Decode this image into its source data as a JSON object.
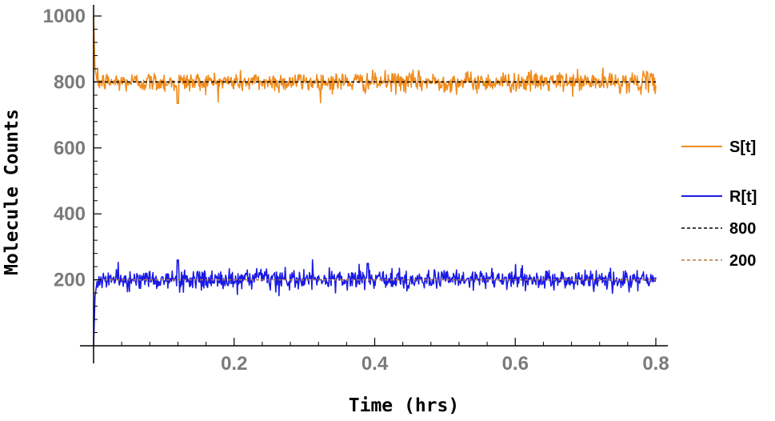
{
  "chart_data": {
    "type": "line",
    "title": "",
    "xlabel": "Time (hrs)",
    "ylabel": "Molecule Counts",
    "xlim": [
      0,
      0.81
    ],
    "ylim": [
      0,
      1050
    ],
    "x_ticks": [
      0.2,
      0.4,
      0.6,
      0.8
    ],
    "x_tick_labels": [
      "0.2",
      "0.4",
      "0.6",
      "0.8"
    ],
    "y_ticks": [
      200,
      400,
      600,
      800,
      1000
    ],
    "y_tick_labels": [
      "200",
      "400",
      "600",
      "800",
      "1000"
    ],
    "grid": false,
    "legend_position": "right",
    "series": [
      {
        "name": "S[t]",
        "color": "#f08c1e",
        "style": "solid",
        "points": [
          [
            0,
            1000
          ],
          [
            0.002,
            840
          ],
          [
            0.005,
            805
          ],
          [
            0.02,
            800
          ],
          [
            0.05,
            810
          ],
          [
            0.1,
            800
          ],
          [
            0.12,
            735
          ],
          [
            0.2,
            800
          ],
          [
            0.3,
            805
          ],
          [
            0.39,
            790
          ],
          [
            0.5,
            800
          ],
          [
            0.6,
            800
          ],
          [
            0.7,
            800
          ],
          [
            0.8,
            800
          ]
        ],
        "mean": 800,
        "noise_sd": 15
      },
      {
        "name": "R[t]",
        "color": "#1a1ae6",
        "style": "solid",
        "points": [
          [
            0,
            0
          ],
          [
            0.002,
            150
          ],
          [
            0.005,
            195
          ],
          [
            0.02,
            200
          ],
          [
            0.05,
            195
          ],
          [
            0.1,
            200
          ],
          [
            0.12,
            260
          ],
          [
            0.2,
            200
          ],
          [
            0.3,
            200
          ],
          [
            0.39,
            250
          ],
          [
            0.5,
            200
          ],
          [
            0.6,
            205
          ],
          [
            0.7,
            200
          ],
          [
            0.8,
            200
          ]
        ],
        "mean": 200,
        "noise_sd": 15
      },
      {
        "name": "800",
        "color": "#000000",
        "style": "dashed",
        "points": [
          [
            0,
            800
          ],
          [
            0.8,
            800
          ]
        ]
      },
      {
        "name": "200",
        "color": "#b5793f",
        "style": "dashed",
        "points": [
          [
            0,
            200
          ],
          [
            0.8,
            200
          ]
        ]
      }
    ]
  }
}
